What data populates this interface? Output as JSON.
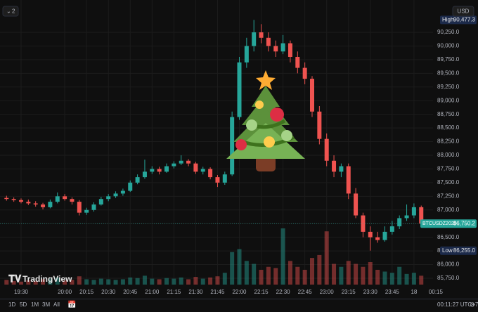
{
  "chart_data": {
    "type": "candlestick",
    "categories": [
      null,
      null,
      "19:30",
      null,
      null,
      null,
      null,
      null,
      "20:00",
      null,
      null,
      "20:15",
      null,
      null,
      "20:30",
      null,
      null,
      "20:45",
      null,
      null,
      "21:00",
      null,
      null,
      "21:15",
      null,
      null,
      "21:30",
      null,
      null,
      "21:45",
      null,
      null,
      "22:00",
      null,
      null,
      "22:15",
      null,
      null,
      "22:30",
      null,
      null,
      "22:45",
      null,
      null,
      "23:00",
      null,
      null,
      "23:15",
      null,
      null,
      "23:30",
      null,
      null,
      "23:45",
      null,
      null,
      "18",
      null,
      null,
      "00:15"
    ],
    "open": [
      87220,
      87200,
      87180,
      87150,
      87120,
      87100,
      87050,
      87150,
      87250,
      87200,
      87150,
      86950,
      87000,
      87100,
      87200,
      87250,
      87300,
      87350,
      87500,
      87600,
      87700,
      87750,
      87700,
      87800,
      87850,
      87900,
      87850,
      87700,
      87750,
      87600,
      87500,
      87650,
      88700,
      89700,
      90000,
      90250,
      90150,
      90000,
      89900,
      90050,
      89800,
      89600,
      89400,
      88800,
      88300,
      87900,
      87700,
      87800,
      87300,
      86900,
      86600,
      86500,
      86450,
      86600,
      86700,
      86850,
      86900,
      87050,
      null,
      null
    ],
    "high": [
      87260,
      87230,
      87210,
      87190,
      87160,
      87130,
      87190,
      87320,
      87290,
      87230,
      87180,
      87040,
      87140,
      87240,
      87290,
      87340,
      87390,
      87540,
      87650,
      87920,
      87800,
      87790,
      87850,
      87890,
      88000,
      87930,
      87880,
      87790,
      87780,
      87640,
      87700,
      88800,
      89800,
      90150,
      90477.3,
      90400,
      90250,
      90100,
      90200,
      90100,
      89900,
      89700,
      89450,
      88900,
      88400,
      88000,
      87850,
      87850,
      87400,
      86950,
      86700,
      86600,
      86700,
      86800,
      86900,
      87100,
      87120,
      87080,
      null,
      null
    ],
    "low": [
      87170,
      87150,
      87120,
      87090,
      87060,
      87010,
      87030,
      87120,
      87170,
      87100,
      86900,
      86910,
      86970,
      87080,
      87160,
      87220,
      87260,
      87330,
      87470,
      87570,
      87660,
      87650,
      87680,
      87760,
      87820,
      87800,
      87660,
      87650,
      87560,
      87420,
      87460,
      87620,
      88650,
      89600,
      89900,
      90050,
      89900,
      89800,
      89850,
      89700,
      89500,
      89300,
      88700,
      88200,
      87800,
      87600,
      87600,
      87200,
      86850,
      86500,
      86255,
      86400,
      86420,
      86550,
      86650,
      86800,
      86850,
      86700,
      null,
      null
    ],
    "close": [
      87200,
      87180,
      87150,
      87120,
      87100,
      87050,
      87150,
      87250,
      87200,
      87150,
      86950,
      87000,
      87100,
      87200,
      87250,
      87300,
      87350,
      87500,
      87600,
      87700,
      87750,
      87700,
      87800,
      87850,
      87900,
      87850,
      87700,
      87750,
      87600,
      87500,
      87650,
      88700,
      89700,
      90000,
      90250,
      90150,
      90000,
      89900,
      90050,
      89800,
      89600,
      89400,
      88800,
      88300,
      87900,
      87700,
      87800,
      87300,
      86900,
      86600,
      86500,
      86450,
      86600,
      86700,
      86850,
      86900,
      87050,
      86750.2,
      null,
      null
    ],
    "volume": [
      8,
      6,
      5,
      7,
      6,
      9,
      10,
      12,
      7,
      8,
      14,
      9,
      8,
      10,
      9,
      8,
      9,
      12,
      11,
      15,
      10,
      9,
      11,
      10,
      12,
      9,
      13,
      10,
      12,
      14,
      20,
      55,
      60,
      40,
      35,
      25,
      30,
      28,
      95,
      40,
      30,
      25,
      45,
      50,
      90,
      35,
      30,
      40,
      35,
      30,
      38,
      25,
      22,
      20,
      30,
      18,
      20,
      15,
      null,
      null
    ],
    "up_color": "#26a69a",
    "down_color": "#ef5350",
    "ylim": [
      85634,
      90713
    ],
    "yticks": [
      {
        "value": 85750,
        "label": "85,750.0"
      },
      {
        "value": 86000,
        "label": "86,000.0"
      },
      {
        "value": 86250,
        "label": "86,250.0"
      },
      {
        "value": 86500,
        "label": "86,500.0"
      },
      {
        "value": 86750,
        "label": "86,750.0"
      },
      {
        "value": 87000,
        "label": "87,000.0"
      },
      {
        "value": 87250,
        "label": "87,250.0"
      },
      {
        "value": 87500,
        "label": "87,500.0"
      },
      {
        "value": 87750,
        "label": "87,750.0"
      },
      {
        "value": 88000,
        "label": "88,000.0"
      },
      {
        "value": 88250,
        "label": "88,250.0"
      },
      {
        "value": 88500,
        "label": "88,500.0"
      },
      {
        "value": 88750,
        "label": "88,750.0"
      },
      {
        "value": 89000,
        "label": "89,000.0"
      },
      {
        "value": 89250,
        "label": "89,250.0"
      },
      {
        "value": 89500,
        "label": "89,500.0"
      },
      {
        "value": 89750,
        "label": "89,750.0"
      },
      {
        "value": 90000,
        "label": "90,000.0"
      },
      {
        "value": 90250,
        "label": "90,250.0"
      }
    ],
    "grid": true,
    "high_marker": {
      "text": "High",
      "value": 90477.3,
      "label": "90,477.3"
    },
    "low_marker": {
      "text": "Low",
      "value": 86255.0,
      "label": "86,255.0"
    },
    "last_price": {
      "symbol": "BTCUSDZ2025",
      "value": 86750.2,
      "label": "86,750.2"
    }
  },
  "ui": {
    "currency": "USD",
    "indicator_count": "2",
    "logo": "TradingView",
    "ranges": [
      "1D",
      "5D",
      "1M",
      "3M",
      "All"
    ],
    "clock": "00:11:27 UTC+7"
  }
}
